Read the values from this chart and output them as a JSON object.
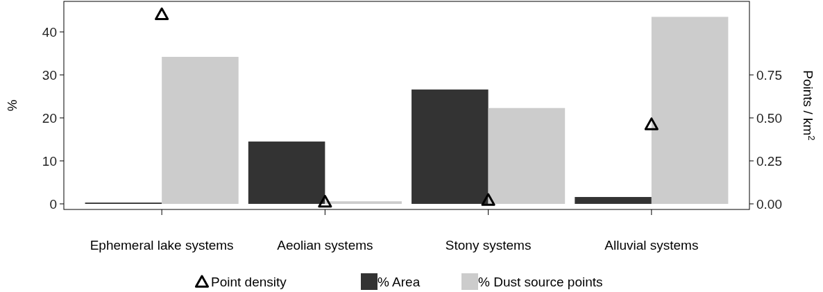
{
  "chart_data": {
    "type": "bar",
    "ylabel": "%",
    "y2label": "Points / km$^{2}$",
    "categories": [
      "Ephemeral lake systems",
      "Aeolian systems",
      "Stony systems",
      "Alluvial systems"
    ],
    "ylim": [
      -1.3,
      47.1
    ],
    "yticks": [
      0,
      10,
      20,
      30,
      40
    ],
    "y2lim": [
      -0.0325,
      1.1775
    ],
    "y2ticks": [
      {
        "value": 0,
        "label": "0.00"
      },
      {
        "value": 0.25,
        "label": "0.25"
      },
      {
        "value": 0.5,
        "label": "0.50"
      },
      {
        "value": 0.75,
        "label": "0.75"
      }
    ],
    "series": [
      {
        "name": "Point density",
        "type": "scatter",
        "axis": "y2",
        "color": "#000000",
        "marker": "triangle",
        "values": [
          1.1,
          0.01,
          0.02,
          0.46
        ]
      },
      {
        "name": "% Area",
        "color": "#333333",
        "values": [
          0.3,
          14.5,
          26.6,
          1.6
        ]
      },
      {
        "name": "% Dust source points",
        "color": "#cccccc",
        "values": [
          34.2,
          0.6,
          22.3,
          43.5
        ]
      }
    ],
    "grid": false,
    "legend": "bottom"
  }
}
